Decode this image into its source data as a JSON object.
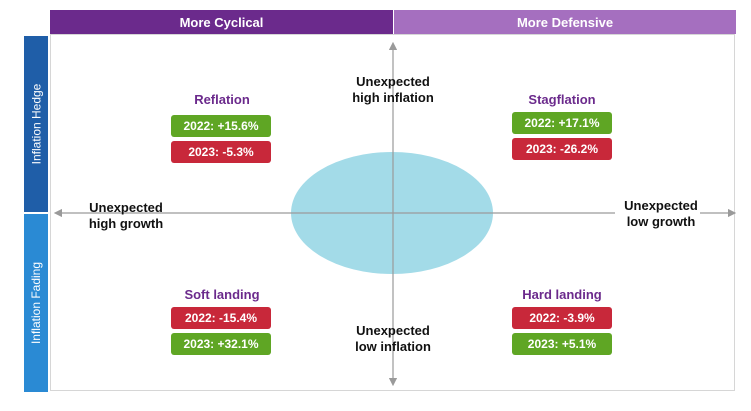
{
  "headers": {
    "top_left": "More Cyclical",
    "top_right": "More Defensive",
    "side_top": "Inflation Hedge",
    "side_bottom": "Inflation Fading"
  },
  "axes": {
    "top": [
      "Unexpected",
      "high inflation"
    ],
    "bottom": [
      "Unexpected",
      "low inflation"
    ],
    "left": [
      "Unexpected",
      "high growth"
    ],
    "right": [
      "Unexpected",
      "low growth"
    ]
  },
  "quadrants": {
    "reflation": {
      "title": "Reflation",
      "y2022": "2022: +15.6%",
      "y2023": "2023: -5.3%"
    },
    "stagflation": {
      "title": "Stagflation",
      "y2022": "2022: +17.1%",
      "y2023": "2023: -26.2%"
    },
    "soft_landing": {
      "title": "Soft landing",
      "y2022": "2022: -15.4%",
      "y2023": "2023: +32.1%"
    },
    "hard_landing": {
      "title": "Hard landing",
      "y2022": "2022: -3.9%",
      "y2023": "2023: +5.1%"
    }
  },
  "colors": {
    "purple_dark": "#6b2a8c",
    "purple_light": "#a56fbf",
    "blue_dark": "#1f5ea8",
    "blue_light": "#2a8ad4",
    "positive": "#5fa624",
    "negative": "#c8283a",
    "ellipse": "#a3dbe8"
  }
}
